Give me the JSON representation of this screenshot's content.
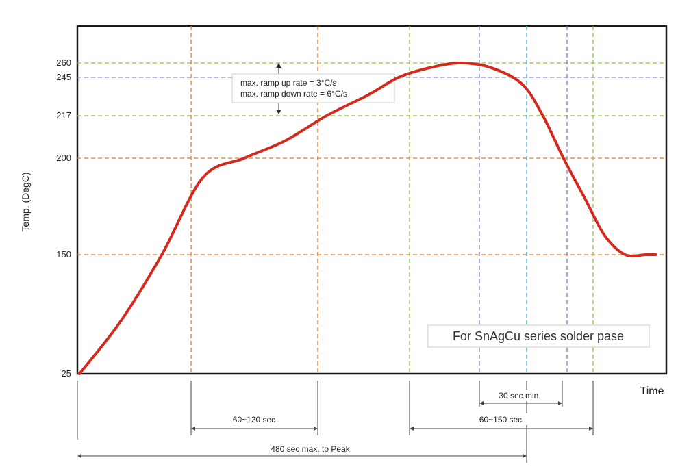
{
  "chart_data": {
    "type": "line",
    "title": "",
    "xlabel": "Time",
    "ylabel": "Temp. (DegC)",
    "y_ticks": [
      {
        "value": 25,
        "label": "25"
      },
      {
        "value": 150,
        "label": "150"
      },
      {
        "value": 200,
        "label": "200"
      },
      {
        "value": 217,
        "label": "217"
      },
      {
        "value": 245,
        "label": "245"
      },
      {
        "value": 260,
        "label": "260"
      }
    ],
    "grid": "dashed reference lines",
    "series": [
      {
        "color": "#d42a1e",
        "x": [
          0,
          40,
          80,
          120,
          160,
          200,
          240,
          280,
          310,
          340,
          370,
          400,
          430,
          450,
          470,
          490,
          510,
          530,
          550,
          560
        ],
        "y": [
          25,
          80,
          150,
          190,
          200,
          207,
          217,
          232,
          245,
          255,
          260,
          255,
          240,
          217,
          200,
          180,
          160,
          150,
          150,
          150
        ]
      }
    ],
    "ramp_note": {
      "line1": "max. ramp up rate = 3°C/s",
      "line2": "max. ramp down rate = 6°C/s"
    },
    "annotation": "For SnAgCu series solder pase",
    "intervals": [
      {
        "label": "30 sec min."
      },
      {
        "label": "60~120 sec"
      },
      {
        "label": "60~150 sec"
      },
      {
        "label": "480 sec max. to Peak"
      }
    ],
    "colors": {
      "curve": "#d42a1e",
      "orange_ref": "#e07a2a",
      "green_ref": "#8dc63f",
      "blue_ref": "#7a86c8",
      "cyan_ref": "#45b8d8"
    }
  }
}
